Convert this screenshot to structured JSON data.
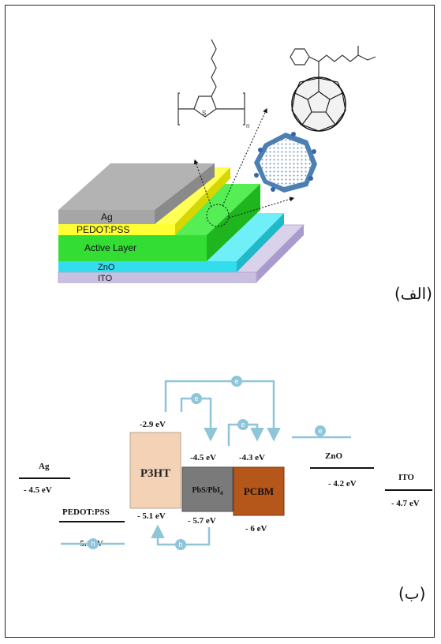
{
  "panel_a": {
    "caption": "(الف)",
    "layers": {
      "ag": "Ag",
      "pedot": "PEDOT:PSS",
      "active": "Active Layer",
      "zno": "ZnO",
      "ito": "ITO"
    },
    "polymer_subscript": "n",
    "thiophene_atom": "S",
    "colors": {
      "ag": "#a6a6a6",
      "pedot": "#ffff33",
      "active": "#33dd33",
      "zno": "#33ddee",
      "ito": "#c9bfe0"
    }
  },
  "panel_b": {
    "caption": "(ب)",
    "ag": {
      "name": "Ag",
      "energy": "- 4.5 eV"
    },
    "pedot": {
      "name": "PEDOT:PSS",
      "energy": "- 5.1 eV"
    },
    "p3ht": {
      "name": "P3HT",
      "lumo": "-2.9 eV",
      "homo": "- 5.1 eV",
      "color": "#f3d2b6"
    },
    "pbs": {
      "name": "PbS/PbI",
      "sub": "4",
      "lumo": "-4.5 eV",
      "homo": "- 5.7 eV",
      "color": "#7a7a7a"
    },
    "pcbm": {
      "name": "PCBM",
      "lumo": "-4.3 eV",
      "homo": "- 6 eV",
      "color": "#b5561a"
    },
    "zno": {
      "name": "ZnO",
      "energy": "- 4.2 eV"
    },
    "ito": {
      "name": "ITO",
      "energy": "- 4.7 eV"
    },
    "electron_symbol": "e",
    "hole_symbol": "h",
    "arrow_color": "#8ec5d8"
  }
}
